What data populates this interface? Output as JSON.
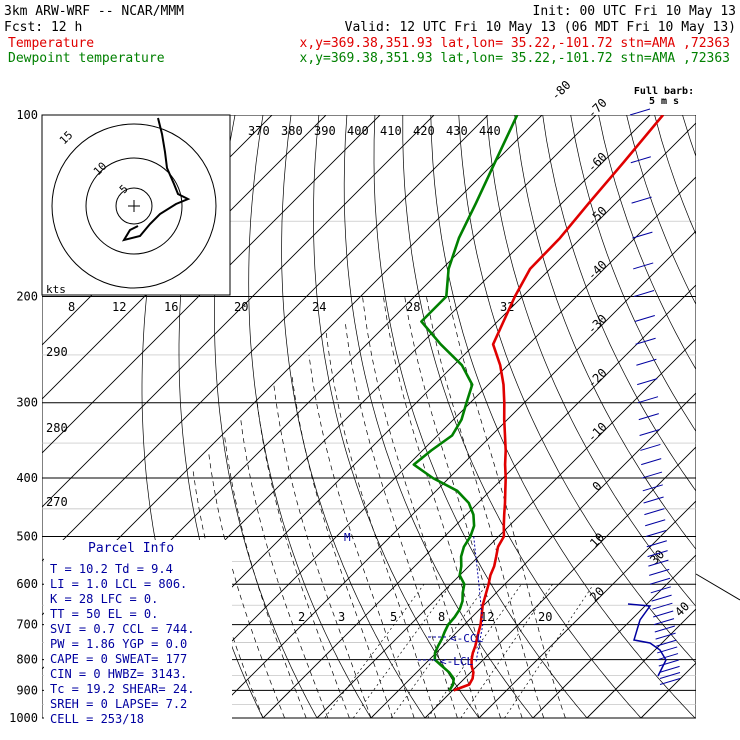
{
  "header": {
    "model": "3km ARW-WRF -- NCAR/MMM",
    "init": "Init: 00 UTC Fri 10 May 13",
    "fcst": "Fcst:   12 h",
    "valid": "Valid: 12 UTC Fri 10 May 13 (06 MDT Fri 10 May 13)",
    "temp_label": "Temperature",
    "dew_label": "Dewpoint temperature",
    "loc": "x,y=369.38,351.93   lat,lon= 35.22,-101.72  stn=AMA ,72363"
  },
  "colors": {
    "temperature": "#e00000",
    "dewpoint": "#008000",
    "parcel": "#0000a0",
    "grid": "#000000"
  },
  "barb_label": [
    "Full barb:",
    "5 m s"
  ],
  "hodo": {
    "unit": "kts",
    "rings": [
      "5",
      "10",
      "15"
    ]
  },
  "parcel_info": {
    "title": "Parcel Info",
    "rows": [
      "T  =   10.2  Td =   9.4",
      "LI =    1.0  LCL =  806.",
      "K  =     28  LFC =    0.",
      "TT =     50  EL  =    0.",
      "SVI =   0.7  CCL =  744.",
      "PW =   1.86  YGP =   0.0",
      "CAPE =    0  SWEAT=  177",
      "CIN =     0  HWBZ= 3143.",
      "Tc =   19.2  SHEAR=  24.",
      "SREH =    0  LAPSE=  7.2",
      "CELL = 253/18"
    ]
  },
  "annotations": {
    "ccl": "<-CCL",
    "lcl": "<-LCL",
    "m": "M"
  },
  "chart_data": {
    "type": "line",
    "title": "",
    "xlabel": "",
    "ylabel": "",
    "y_scale": "log-pressure",
    "ylim": [
      1000,
      100
    ],
    "pressure_labels": [
      "100",
      "200",
      "300",
      "400",
      "500",
      "600",
      "700",
      "800",
      "900",
      "1000"
    ],
    "pressure_levels": [
      100,
      200,
      300,
      400,
      500,
      600,
      700,
      800,
      900,
      1000
    ],
    "isotherm_labels": [
      "-80",
      "-70",
      "-60",
      "-50",
      "-40",
      "-30",
      "-20",
      "-10",
      "0",
      "10",
      "20",
      "30",
      "40"
    ],
    "theta_labels_top": [
      "370",
      "380",
      "390",
      "400",
      "410",
      "420",
      "430",
      "440"
    ],
    "theta_labels_left": [
      "290",
      "280",
      "270"
    ],
    "mixing_ratio_labels_upper": [
      "8",
      "12",
      "16",
      "20",
      "24",
      "28",
      "32"
    ],
    "mixing_ratio_labels_lower": [
      "2",
      "3",
      "5",
      "8",
      "12",
      "20"
    ],
    "series": [
      {
        "name": "Temperature",
        "p": [
          900,
          880,
          860,
          840,
          820,
          800,
          780,
          760,
          740,
          720,
          700,
          650,
          600,
          580,
          560,
          540,
          520,
          500,
          480,
          460,
          440,
          420,
          400,
          380,
          360,
          340,
          320,
          300,
          280,
          260,
          240,
          220,
          200,
          180,
          160,
          140,
          120,
          100
        ],
        "t": [
          10.2,
          12.0,
          11.5,
          10.5,
          9.0,
          7.8,
          6.8,
          6.0,
          5.0,
          4.0,
          3.0,
          -0.2,
          -3.0,
          -4.3,
          -5.3,
          -6.7,
          -8.2,
          -9.0,
          -11.0,
          -13.0,
          -15.0,
          -17.2,
          -19.5,
          -22.1,
          -24.6,
          -27.5,
          -30.6,
          -33.7,
          -37.2,
          -41.4,
          -46.6,
          -48.9,
          -51.4,
          -53.7,
          -53.9,
          -55.0,
          -56.1,
          -57.6
        ]
      },
      {
        "name": "Dewpoint temperature",
        "p": [
          900,
          880,
          860,
          840,
          820,
          800,
          780,
          760,
          740,
          720,
          700,
          680,
          660,
          640,
          620,
          600,
          580,
          560,
          540,
          520,
          500,
          480,
          460,
          440,
          420,
          400,
          380,
          360,
          340,
          320,
          300,
          280,
          260,
          240,
          220,
          200,
          180,
          160,
          140,
          120,
          100
        ],
        "td": [
          9.4,
          9.0,
          8.0,
          6.0,
          3.5,
          1.0,
          -0.2,
          -0.9,
          -1.5,
          -2.3,
          -3.0,
          -3.2,
          -3.7,
          -4.7,
          -6.2,
          -7.5,
          -10.0,
          -11.4,
          -13.2,
          -14.5,
          -15.2,
          -16.5,
          -18.7,
          -21.7,
          -26.1,
          -33.0,
          -39.0,
          -38.4,
          -37.3,
          -38.5,
          -40.7,
          -43.0,
          -48.5,
          -56.3,
          -64.1,
          -64.1,
          -68.8,
          -72.6,
          -75.9,
          -79.9,
          -84.6
        ]
      }
    ]
  }
}
